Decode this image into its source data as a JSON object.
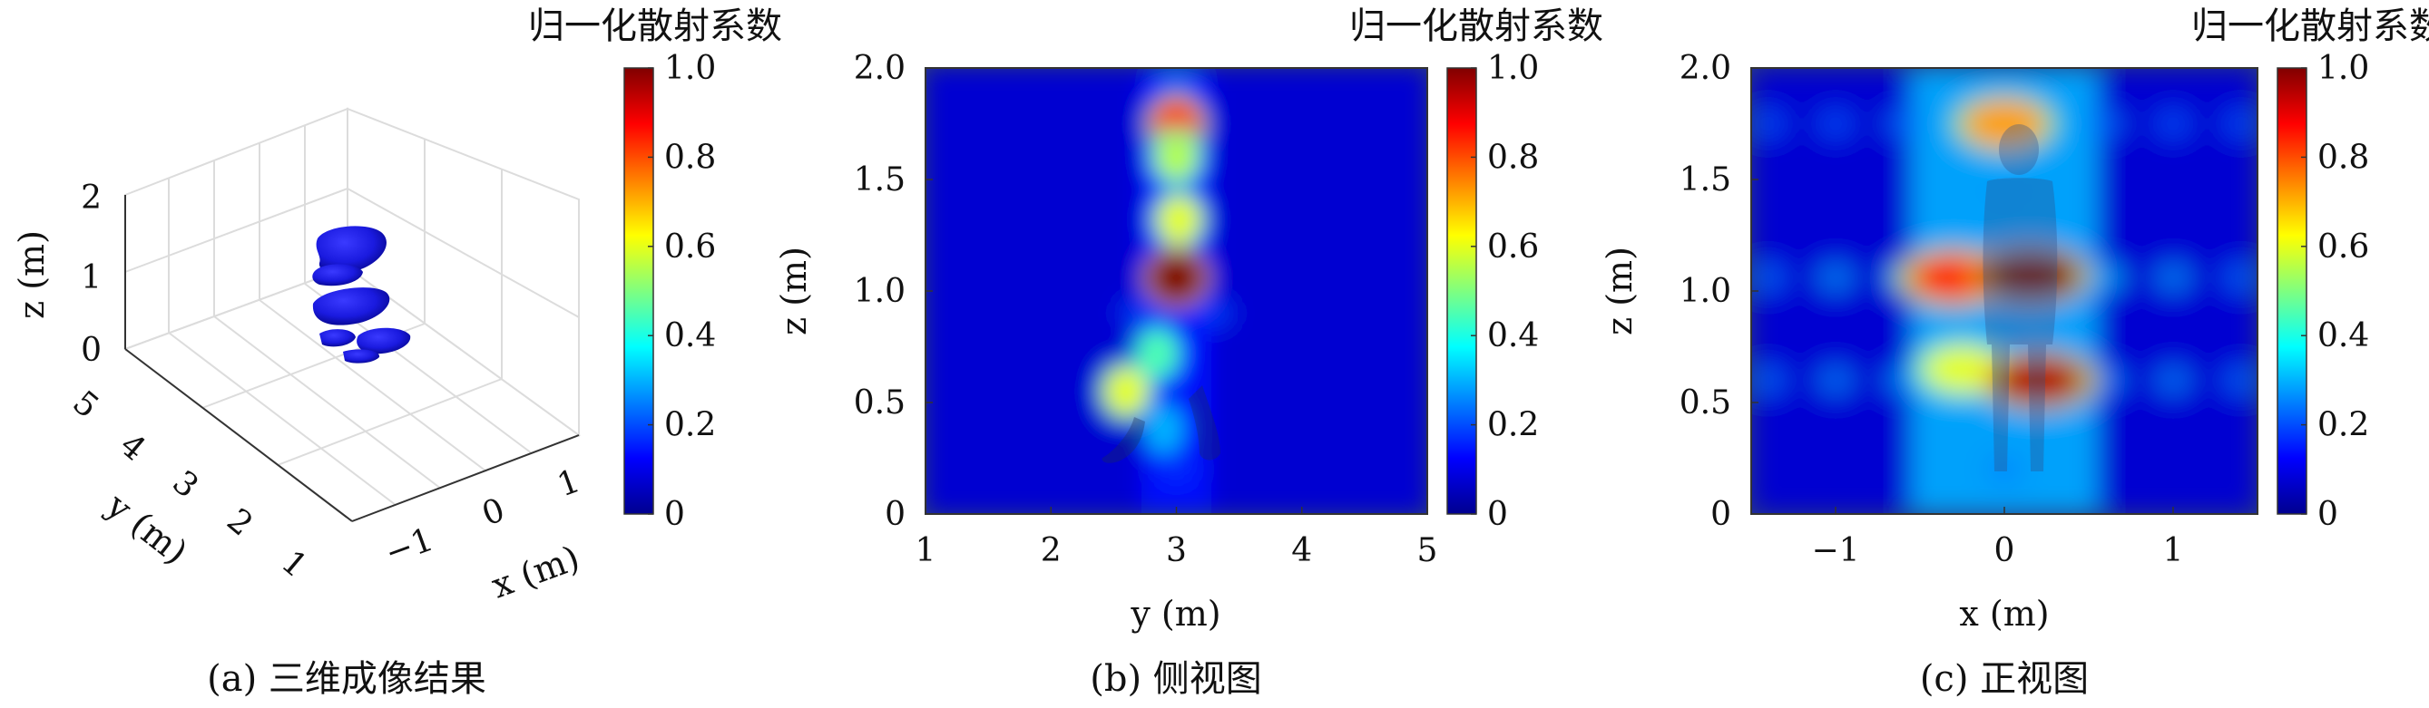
{
  "chart_data": [
    {
      "type": "3d-isosurface",
      "caption": "(a) 三维成像结果",
      "xlabel": "x (m)",
      "ylabel": "y (m)",
      "zlabel": "z (m)",
      "x_ticks": [
        "−1",
        "0",
        "1"
      ],
      "y_ticks": [
        "1",
        "2",
        "3",
        "4",
        "5"
      ],
      "z_ticks": [
        "0",
        "1",
        "2"
      ],
      "xlim": [
        -1.5,
        1.5
      ],
      "ylim": [
        1,
        5
      ],
      "zlim": [
        0,
        2
      ],
      "grid": true,
      "surface_color": "#1a1adf",
      "blobs": [
        {
          "x": 0.0,
          "y": 3.0,
          "z": 1.45
        },
        {
          "x": 0.05,
          "y": 3.0,
          "z": 1.05
        },
        {
          "x": 0.1,
          "y": 3.0,
          "z": 0.6
        }
      ],
      "colorbar": {
        "title": "归一化散射系数",
        "ticks": [
          "0",
          "0.2",
          "0.4",
          "0.6",
          "0.8",
          "1.0"
        ],
        "range": [
          0,
          1
        ],
        "colormap": "jet"
      }
    },
    {
      "type": "heatmap",
      "caption": "(b) 侧视图",
      "xlabel": "y (m)",
      "ylabel": "z (m)",
      "xlim": [
        1,
        5
      ],
      "ylim": [
        0,
        2
      ],
      "x_ticks": [
        "1",
        "2",
        "3",
        "4",
        "5"
      ],
      "y_ticks": [
        "0",
        "0.5",
        "1.0",
        "1.5",
        "2.0"
      ],
      "background_value": 0.08,
      "hotspots": [
        {
          "x": 3.0,
          "z": 1.75,
          "value": 0.82
        },
        {
          "x": 3.0,
          "z": 1.6,
          "value": 0.55
        },
        {
          "x": 3.02,
          "z": 1.32,
          "value": 0.6
        },
        {
          "x": 3.0,
          "z": 1.06,
          "value": 1.0
        },
        {
          "x": 2.85,
          "z": 0.72,
          "value": 0.45
        },
        {
          "x": 2.6,
          "z": 0.55,
          "value": 0.6
        },
        {
          "x": 2.9,
          "z": 0.38,
          "value": 0.3
        }
      ],
      "colorbar": {
        "title": "归一化散射系数",
        "ticks": [
          "0",
          "0.2",
          "0.4",
          "0.6",
          "0.8",
          "1.0"
        ],
        "range": [
          0,
          1
        ],
        "colormap": "jet"
      }
    },
    {
      "type": "heatmap",
      "caption": "(c) 正视图",
      "xlabel": "x (m)",
      "ylabel": "z (m)",
      "xlim": [
        -1.5,
        1.5
      ],
      "ylim": [
        0,
        2
      ],
      "x_ticks": [
        "−1",
        "0",
        "1"
      ],
      "y_ticks": [
        "0",
        "0.5",
        "1.0",
        "1.5",
        "2.0"
      ],
      "background_value": 0.08,
      "hotspots": [
        {
          "x": 0.0,
          "z": 1.75,
          "value": 0.72
        },
        {
          "x": -0.3,
          "z": 1.06,
          "value": 0.85
        },
        {
          "x": 0.15,
          "z": 1.07,
          "value": 1.0
        },
        {
          "x": -0.25,
          "z": 0.65,
          "value": 0.6
        },
        {
          "x": 0.2,
          "z": 0.6,
          "value": 0.95
        }
      ],
      "colorbar": {
        "title": "归一化散射系数",
        "ticks": [
          "0",
          "0.2",
          "0.4",
          "0.6",
          "0.8",
          "1.0"
        ],
        "range": [
          0,
          1
        ],
        "colormap": "jet"
      }
    }
  ]
}
